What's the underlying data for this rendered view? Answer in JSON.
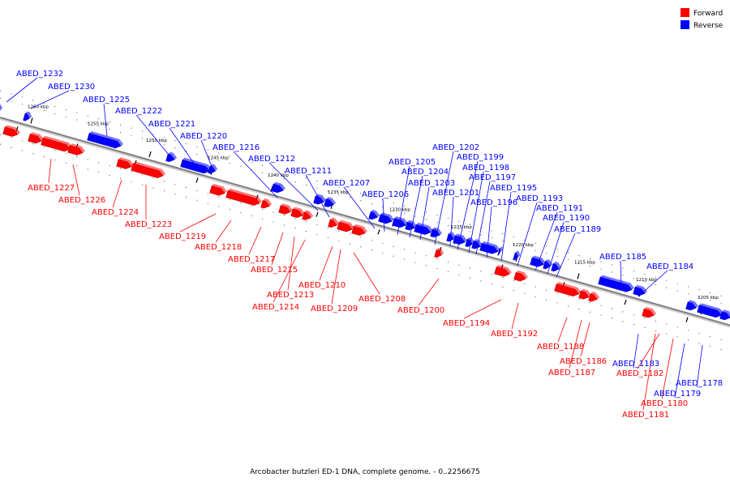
{
  "caption": "Arcobacter butzleri ED-1 DNA, complete genome. - 0..2256675",
  "colors": {
    "forward": "#ff0000",
    "reverse": "#0000ff",
    "backbone": "#808080"
  },
  "legend": [
    {
      "label": "Forward",
      "strand": "forward"
    },
    {
      "label": "Reverse",
      "strand": "reverse"
    }
  ],
  "kbp_ticks": [
    "1260 kbp",
    "1255 kbp",
    "1250 kbp",
    "1245 kbp",
    "1240 kbp",
    "1235 kbp",
    "1230 kbp",
    "1225 kbp",
    "1220 kbp",
    "1215 kbp",
    "1210 kbp",
    "1205 kbp"
  ],
  "genes": [
    {
      "name": "ABED_1232",
      "strand": "reverse"
    },
    {
      "name": "ABED_1230",
      "strand": "reverse"
    },
    {
      "name": "ABED_1225",
      "strand": "reverse"
    },
    {
      "name": "ABED_1222",
      "strand": "reverse"
    },
    {
      "name": "ABED_1221",
      "strand": "reverse"
    },
    {
      "name": "ABED_1220",
      "strand": "reverse"
    },
    {
      "name": "ABED_1216",
      "strand": "reverse"
    },
    {
      "name": "ABED_1212",
      "strand": "reverse"
    },
    {
      "name": "ABED_1211",
      "strand": "reverse"
    },
    {
      "name": "ABED_1207",
      "strand": "reverse"
    },
    {
      "name": "ABED_1206",
      "strand": "reverse"
    },
    {
      "name": "ABED_1205",
      "strand": "reverse"
    },
    {
      "name": "ABED_1204",
      "strand": "reverse"
    },
    {
      "name": "ABED_1203",
      "strand": "reverse"
    },
    {
      "name": "ABED_1202",
      "strand": "reverse"
    },
    {
      "name": "ABED_1201",
      "strand": "reverse"
    },
    {
      "name": "ABED_1199",
      "strand": "reverse"
    },
    {
      "name": "ABED_1198",
      "strand": "reverse"
    },
    {
      "name": "ABED_1197",
      "strand": "reverse"
    },
    {
      "name": "ABED_1196",
      "strand": "reverse"
    },
    {
      "name": "ABED_1195",
      "strand": "reverse"
    },
    {
      "name": "ABED_1193",
      "strand": "reverse"
    },
    {
      "name": "ABED_1191",
      "strand": "reverse"
    },
    {
      "name": "ABED_1190",
      "strand": "reverse"
    },
    {
      "name": "ABED_1189",
      "strand": "reverse"
    },
    {
      "name": "ABED_1185",
      "strand": "reverse"
    },
    {
      "name": "ABED_1184",
      "strand": "reverse"
    },
    {
      "name": "ABED_1183",
      "strand": "reverse"
    },
    {
      "name": "ABED_1179",
      "strand": "reverse"
    },
    {
      "name": "ABED_1178",
      "strand": "reverse"
    },
    {
      "name": "ABED_1227",
      "strand": "forward"
    },
    {
      "name": "ABED_1226",
      "strand": "forward"
    },
    {
      "name": "ABED_1224",
      "strand": "forward"
    },
    {
      "name": "ABED_1223",
      "strand": "forward"
    },
    {
      "name": "ABED_1219",
      "strand": "forward"
    },
    {
      "name": "ABED_1218",
      "strand": "forward"
    },
    {
      "name": "ABED_1217",
      "strand": "forward"
    },
    {
      "name": "ABED_1215",
      "strand": "forward"
    },
    {
      "name": "ABED_1213",
      "strand": "forward"
    },
    {
      "name": "ABED_1214",
      "strand": "forward"
    },
    {
      "name": "ABED_1210",
      "strand": "forward"
    },
    {
      "name": "ABED_1209",
      "strand": "forward"
    },
    {
      "name": "ABED_1208",
      "strand": "forward"
    },
    {
      "name": "ABED_1200",
      "strand": "forward"
    },
    {
      "name": "ABED_1194",
      "strand": "forward"
    },
    {
      "name": "ABED_1192",
      "strand": "forward"
    },
    {
      "name": "ABED_1188",
      "strand": "forward"
    },
    {
      "name": "ABED_1186",
      "strand": "forward"
    },
    {
      "name": "ABED_1187",
      "strand": "forward"
    },
    {
      "name": "ABED_1182",
      "strand": "forward"
    },
    {
      "name": "ABED_1180",
      "strand": "forward"
    },
    {
      "name": "ABED_1181",
      "strand": "forward"
    }
  ]
}
